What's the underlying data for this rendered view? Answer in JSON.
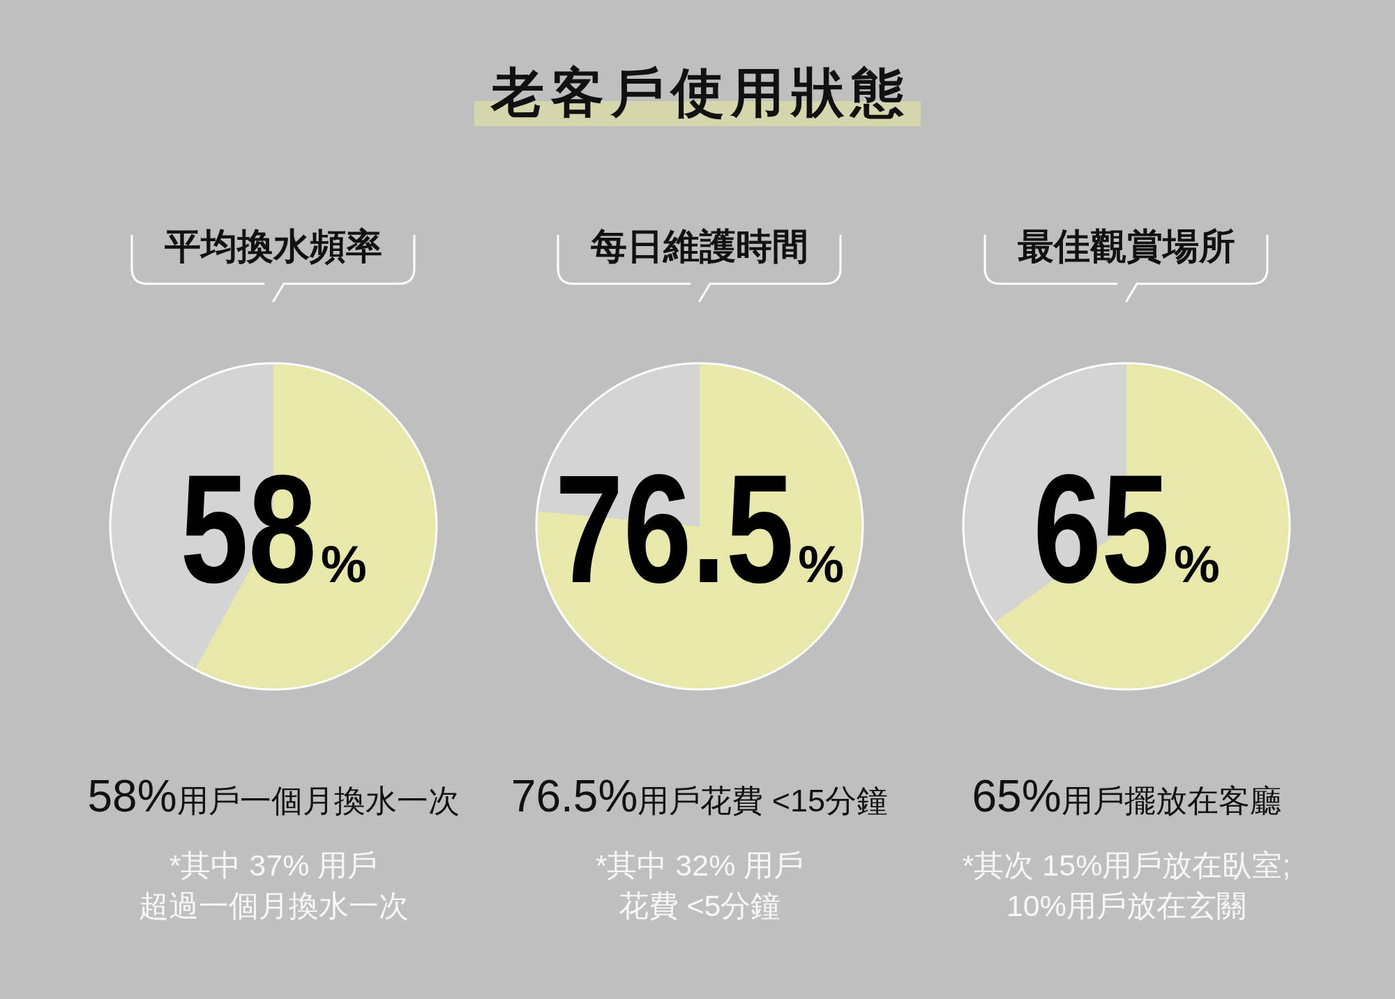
{
  "chart_data": [
    {
      "type": "other",
      "title": "老客戶使用狀態"
    },
    {
      "type": "pie",
      "title": "平均換水頻率",
      "categories": [
        null,
        null
      ],
      "values": [
        58,
        42
      ],
      "colors": [
        "#e8e8ab",
        "#d4d4d4"
      ],
      "value_labels": [
        "58%",
        null
      ],
      "annotations": [
        "58%用戶一個月換水一次",
        "*其中 37% 用戶",
        "超過一個月換水一次"
      ]
    },
    {
      "type": "pie",
      "title": "每日維護時間",
      "categories": [
        null,
        null
      ],
      "values": [
        76.5,
        23.5
      ],
      "colors": [
        "#e8e8ab",
        "#d4d4d4"
      ],
      "value_labels": [
        "76.5%",
        null
      ],
      "annotations": [
        "76.5%用戶花費 <15分鐘",
        "*其中 32% 用戶",
        "花費 <5分鐘"
      ]
    },
    {
      "type": "pie",
      "title": "最佳觀賞場所",
      "categories": [
        null,
        null
      ],
      "values": [
        65,
        35
      ],
      "colors": [
        "#e8e8ab",
        "#d4d4d4"
      ],
      "value_labels": [
        "65%",
        null
      ],
      "annotations": [
        "65%用戶擺放在客廳",
        "*其次 15%用戶放在臥室;",
        "10%用戶放在玄關"
      ]
    }
  ]
}
